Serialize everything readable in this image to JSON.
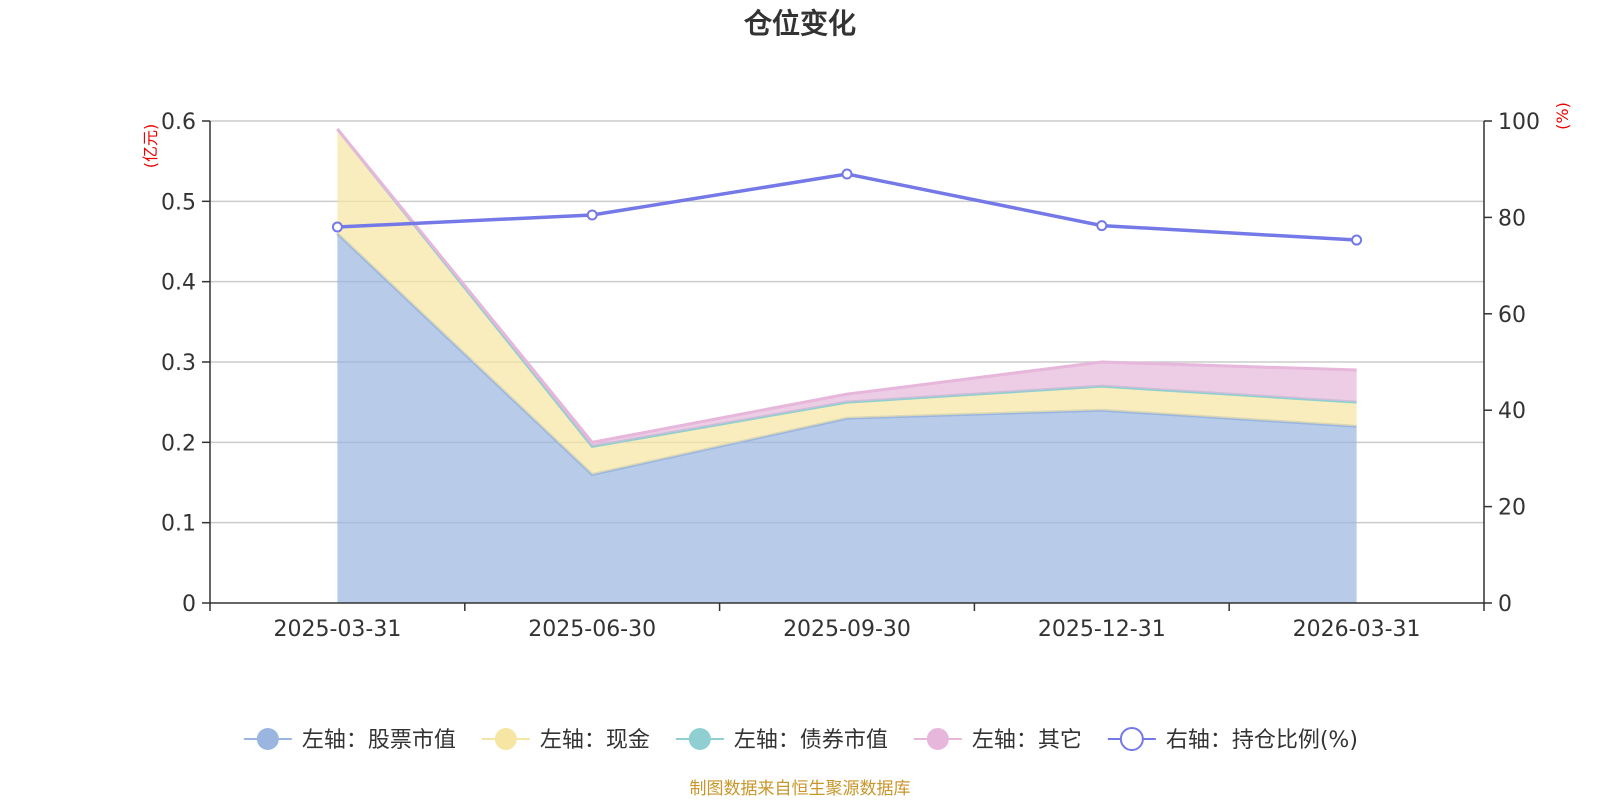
{
  "chart_data": {
    "type": "area",
    "title": "仓位变化",
    "categories": [
      "2025-03-31",
      "2025-06-30",
      "2025-09-30",
      "2025-12-31",
      "2026-03-31"
    ],
    "left_axis": {
      "unit": "(亿元)",
      "ylim": [
        0,
        0.6
      ],
      "ticks": [
        "0",
        "0.1",
        "0.2",
        "0.3",
        "0.4",
        "0.5",
        "0.6"
      ]
    },
    "right_axis": {
      "unit": "(%)",
      "ylim": [
        0,
        100
      ],
      "ticks": [
        "0",
        "20",
        "40",
        "60",
        "80",
        "100"
      ]
    },
    "stacked": true,
    "grid": true,
    "legend_position": "bottom",
    "series": [
      {
        "name": "左轴：股票市值",
        "axis": "left",
        "kind": "area",
        "color": "#9ab6e0",
        "values": [
          0.46,
          0.16,
          0.23,
          0.24,
          0.22
        ]
      },
      {
        "name": "左轴：现金",
        "axis": "left",
        "kind": "area",
        "color": "#f7e5a3",
        "values": [
          0.13,
          0.035,
          0.02,
          0.03,
          0.03
        ]
      },
      {
        "name": "左轴：债券市值",
        "axis": "left",
        "kind": "area",
        "color": "#8fcfd1",
        "values": [
          0,
          0,
          0,
          0,
          0
        ]
      },
      {
        "name": "左轴：其它",
        "axis": "left",
        "kind": "area",
        "color": "#e6b6db",
        "values": [
          0,
          0.005,
          0.01,
          0.03,
          0.04
        ]
      },
      {
        "name": "右轴：持仓比例(%)",
        "axis": "right",
        "kind": "line",
        "color": "#7579e7",
        "values": [
          78,
          80.5,
          89,
          78.3,
          75.3
        ]
      }
    ]
  },
  "source": "制图数据来自恒生聚源数据库"
}
